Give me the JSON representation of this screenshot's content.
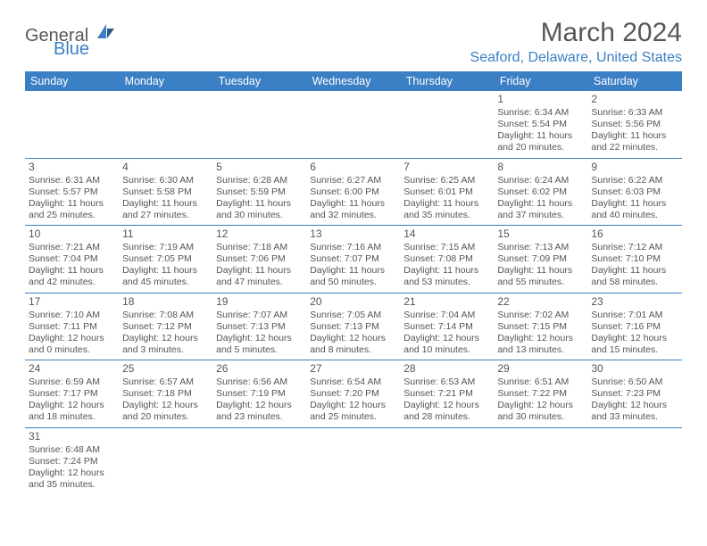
{
  "logo": {
    "general": "General",
    "blue": "Blue"
  },
  "title": "March 2024",
  "location": "Seaford, Delaware, United States",
  "header_color": "#3b7fc4",
  "text_color": "#555555",
  "weekdays": [
    "Sunday",
    "Monday",
    "Tuesday",
    "Wednesday",
    "Thursday",
    "Friday",
    "Saturday"
  ],
  "weeks": [
    [
      null,
      null,
      null,
      null,
      null,
      {
        "n": "1",
        "sr": "Sunrise: 6:34 AM",
        "ss": "Sunset: 5:54 PM",
        "d1": "Daylight: 11 hours",
        "d2": "and 20 minutes."
      },
      {
        "n": "2",
        "sr": "Sunrise: 6:33 AM",
        "ss": "Sunset: 5:56 PM",
        "d1": "Daylight: 11 hours",
        "d2": "and 22 minutes."
      }
    ],
    [
      {
        "n": "3",
        "sr": "Sunrise: 6:31 AM",
        "ss": "Sunset: 5:57 PM",
        "d1": "Daylight: 11 hours",
        "d2": "and 25 minutes."
      },
      {
        "n": "4",
        "sr": "Sunrise: 6:30 AM",
        "ss": "Sunset: 5:58 PM",
        "d1": "Daylight: 11 hours",
        "d2": "and 27 minutes."
      },
      {
        "n": "5",
        "sr": "Sunrise: 6:28 AM",
        "ss": "Sunset: 5:59 PM",
        "d1": "Daylight: 11 hours",
        "d2": "and 30 minutes."
      },
      {
        "n": "6",
        "sr": "Sunrise: 6:27 AM",
        "ss": "Sunset: 6:00 PM",
        "d1": "Daylight: 11 hours",
        "d2": "and 32 minutes."
      },
      {
        "n": "7",
        "sr": "Sunrise: 6:25 AM",
        "ss": "Sunset: 6:01 PM",
        "d1": "Daylight: 11 hours",
        "d2": "and 35 minutes."
      },
      {
        "n": "8",
        "sr": "Sunrise: 6:24 AM",
        "ss": "Sunset: 6:02 PM",
        "d1": "Daylight: 11 hours",
        "d2": "and 37 minutes."
      },
      {
        "n": "9",
        "sr": "Sunrise: 6:22 AM",
        "ss": "Sunset: 6:03 PM",
        "d1": "Daylight: 11 hours",
        "d2": "and 40 minutes."
      }
    ],
    [
      {
        "n": "10",
        "sr": "Sunrise: 7:21 AM",
        "ss": "Sunset: 7:04 PM",
        "d1": "Daylight: 11 hours",
        "d2": "and 42 minutes."
      },
      {
        "n": "11",
        "sr": "Sunrise: 7:19 AM",
        "ss": "Sunset: 7:05 PM",
        "d1": "Daylight: 11 hours",
        "d2": "and 45 minutes."
      },
      {
        "n": "12",
        "sr": "Sunrise: 7:18 AM",
        "ss": "Sunset: 7:06 PM",
        "d1": "Daylight: 11 hours",
        "d2": "and 47 minutes."
      },
      {
        "n": "13",
        "sr": "Sunrise: 7:16 AM",
        "ss": "Sunset: 7:07 PM",
        "d1": "Daylight: 11 hours",
        "d2": "and 50 minutes."
      },
      {
        "n": "14",
        "sr": "Sunrise: 7:15 AM",
        "ss": "Sunset: 7:08 PM",
        "d1": "Daylight: 11 hours",
        "d2": "and 53 minutes."
      },
      {
        "n": "15",
        "sr": "Sunrise: 7:13 AM",
        "ss": "Sunset: 7:09 PM",
        "d1": "Daylight: 11 hours",
        "d2": "and 55 minutes."
      },
      {
        "n": "16",
        "sr": "Sunrise: 7:12 AM",
        "ss": "Sunset: 7:10 PM",
        "d1": "Daylight: 11 hours",
        "d2": "and 58 minutes."
      }
    ],
    [
      {
        "n": "17",
        "sr": "Sunrise: 7:10 AM",
        "ss": "Sunset: 7:11 PM",
        "d1": "Daylight: 12 hours",
        "d2": "and 0 minutes."
      },
      {
        "n": "18",
        "sr": "Sunrise: 7:08 AM",
        "ss": "Sunset: 7:12 PM",
        "d1": "Daylight: 12 hours",
        "d2": "and 3 minutes."
      },
      {
        "n": "19",
        "sr": "Sunrise: 7:07 AM",
        "ss": "Sunset: 7:13 PM",
        "d1": "Daylight: 12 hours",
        "d2": "and 5 minutes."
      },
      {
        "n": "20",
        "sr": "Sunrise: 7:05 AM",
        "ss": "Sunset: 7:13 PM",
        "d1": "Daylight: 12 hours",
        "d2": "and 8 minutes."
      },
      {
        "n": "21",
        "sr": "Sunrise: 7:04 AM",
        "ss": "Sunset: 7:14 PM",
        "d1": "Daylight: 12 hours",
        "d2": "and 10 minutes."
      },
      {
        "n": "22",
        "sr": "Sunrise: 7:02 AM",
        "ss": "Sunset: 7:15 PM",
        "d1": "Daylight: 12 hours",
        "d2": "and 13 minutes."
      },
      {
        "n": "23",
        "sr": "Sunrise: 7:01 AM",
        "ss": "Sunset: 7:16 PM",
        "d1": "Daylight: 12 hours",
        "d2": "and 15 minutes."
      }
    ],
    [
      {
        "n": "24",
        "sr": "Sunrise: 6:59 AM",
        "ss": "Sunset: 7:17 PM",
        "d1": "Daylight: 12 hours",
        "d2": "and 18 minutes."
      },
      {
        "n": "25",
        "sr": "Sunrise: 6:57 AM",
        "ss": "Sunset: 7:18 PM",
        "d1": "Daylight: 12 hours",
        "d2": "and 20 minutes."
      },
      {
        "n": "26",
        "sr": "Sunrise: 6:56 AM",
        "ss": "Sunset: 7:19 PM",
        "d1": "Daylight: 12 hours",
        "d2": "and 23 minutes."
      },
      {
        "n": "27",
        "sr": "Sunrise: 6:54 AM",
        "ss": "Sunset: 7:20 PM",
        "d1": "Daylight: 12 hours",
        "d2": "and 25 minutes."
      },
      {
        "n": "28",
        "sr": "Sunrise: 6:53 AM",
        "ss": "Sunset: 7:21 PM",
        "d1": "Daylight: 12 hours",
        "d2": "and 28 minutes."
      },
      {
        "n": "29",
        "sr": "Sunrise: 6:51 AM",
        "ss": "Sunset: 7:22 PM",
        "d1": "Daylight: 12 hours",
        "d2": "and 30 minutes."
      },
      {
        "n": "30",
        "sr": "Sunrise: 6:50 AM",
        "ss": "Sunset: 7:23 PM",
        "d1": "Daylight: 12 hours",
        "d2": "and 33 minutes."
      }
    ],
    [
      {
        "n": "31",
        "sr": "Sunrise: 6:48 AM",
        "ss": "Sunset: 7:24 PM",
        "d1": "Daylight: 12 hours",
        "d2": "and 35 minutes."
      },
      null,
      null,
      null,
      null,
      null,
      null
    ]
  ]
}
